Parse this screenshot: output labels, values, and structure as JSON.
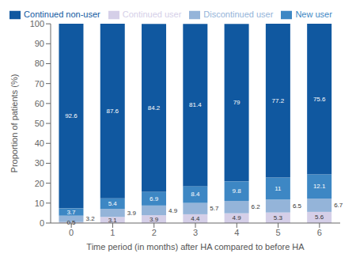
{
  "chart_data": {
    "type": "bar",
    "stacked": true,
    "data_labels": true,
    "grid": false,
    "legend": "top",
    "xlabel": "Time period (in months) after HA compared to before HA",
    "ylabel": "Proportion of patients (%)",
    "categories": [
      0,
      1,
      2,
      3,
      4,
      5,
      6
    ],
    "ylim": [
      0,
      100
    ],
    "yticks": [
      0,
      10,
      20,
      30,
      40,
      50,
      60,
      70,
      80,
      90,
      100
    ],
    "series": [
      {
        "name": "Continued user",
        "color": "#d5cfe8",
        "values": [
          0.5,
          3.1,
          3.9,
          4.4,
          4.9,
          5.3,
          5.6
        ]
      },
      {
        "name": "Discontinued user",
        "color": "#94b4d9",
        "values": [
          3.2,
          3.9,
          4.9,
          5.7,
          6.2,
          6.5,
          6.7
        ]
      },
      {
        "name": "New user",
        "color": "#3d87c4",
        "values": [
          3.7,
          5.4,
          6.9,
          8.4,
          9.8,
          11.0,
          12.1
        ]
      },
      {
        "name": "Continued non-user",
        "color": "#1058a0",
        "values": [
          92.6,
          87.6,
          84.2,
          81.4,
          79.0,
          77.2,
          75.6
        ]
      }
    ]
  }
}
